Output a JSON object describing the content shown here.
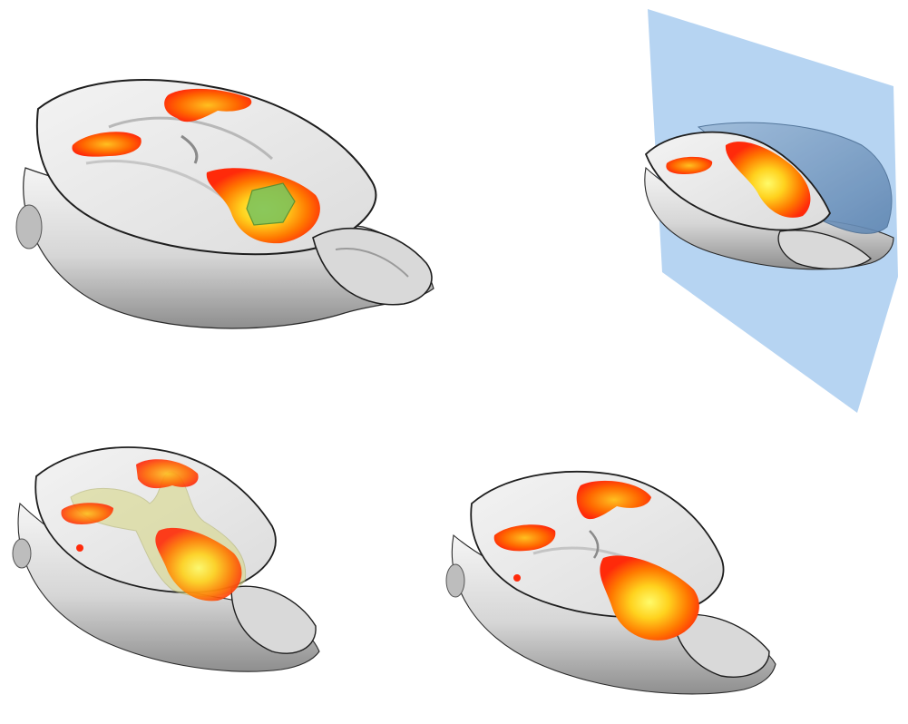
{
  "figure": {
    "panels": [
      {
        "id": "panel-top-left",
        "overlays": [
          "red-yellow-activation",
          "green-roi-cube"
        ]
      },
      {
        "id": "panel-top-right",
        "overlays": [
          "red-yellow-activation",
          "blue-cutting-plane",
          "blue-hemisphere"
        ]
      },
      {
        "id": "panel-bottom-left",
        "overlays": [
          "red-yellow-activation",
          "translucent-yellow-mask"
        ]
      },
      {
        "id": "panel-bottom-right",
        "overlays": [
          "red-yellow-activation"
        ]
      }
    ]
  },
  "colors": {
    "background": "#ffffff",
    "brain_light": "#eeeeee",
    "brain_dark": "#8a8a8a",
    "outline": "#1e1e1e",
    "activation_red": "#ff2a0a",
    "activation_orange": "#ff8a00",
    "activation_yellow": "#ffee33",
    "roi_green": "#7fc35a",
    "plane_blue": "#a9cdf0",
    "hemisphere_blue": "#7b9fc6",
    "mask_yellow": "#d8d88a"
  }
}
